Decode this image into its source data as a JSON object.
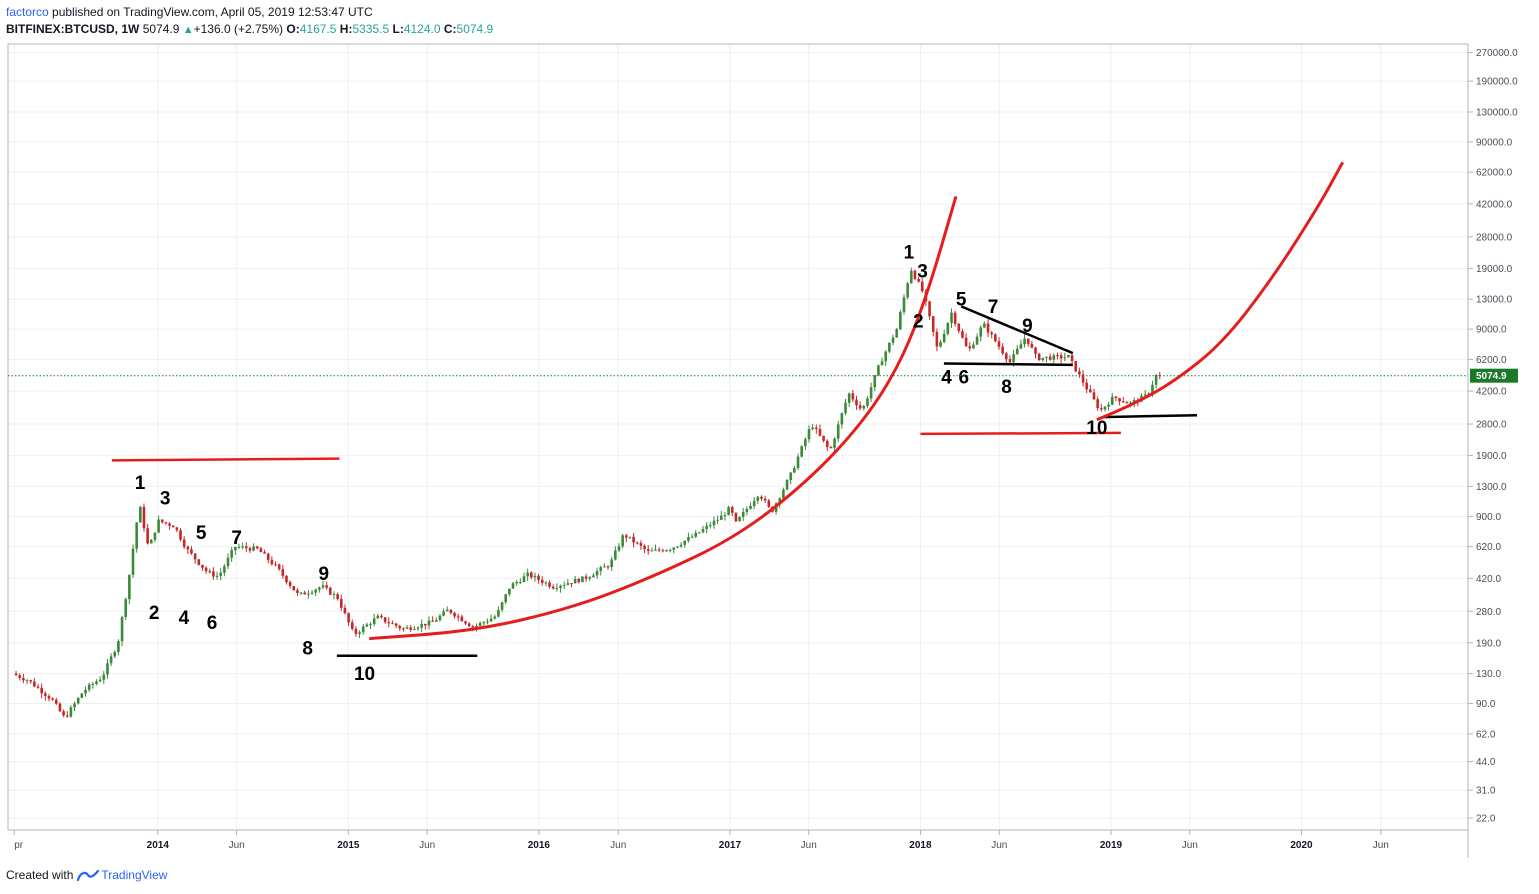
{
  "header": {
    "author": "factorco",
    "published": " published on TradingView.com, April 05, 2019 12:53:47 UTC",
    "symbol": "BITFINEX:BTCUSD, 1W",
    "last": "5074.9",
    "up_arrow": "▲",
    "change": "+136.0 (+2.75%)",
    "o_label": "O:",
    "o_value": "4167.5",
    "h_label": "H:",
    "h_value": "5335.5",
    "l_label": "L:",
    "l_value": "4124.0",
    "c_label": "C:",
    "c_value": "5074.9"
  },
  "footer": {
    "created_with": "Created with",
    "brand": "TradingView"
  },
  "colors": {
    "up": "#26a69a",
    "down": "#ef5350",
    "candle_body_up": "#3a8a3a",
    "candle_body_down": "#c62828",
    "curve": "#e61d1d",
    "line_black": "#000000",
    "last_price_bg": "#1b7a2a",
    "brand": "#2962ff"
  },
  "chart_data": {
    "type": "candlestick",
    "symbol": "BITFINEX:BTCUSD",
    "interval": "1W",
    "y_scale": "log",
    "ylim": [
      20,
      270000
    ],
    "y_ticks": [
      "270000.0",
      "190000.0",
      "130000.0",
      "90000.0",
      "62000.0",
      "42000.0",
      "28000.0",
      "19000.0",
      "13000.0",
      "9000.0",
      "6200.0",
      "4200.0",
      "2800.0",
      "1900.0",
      "1300.0",
      "900.0",
      "620.0",
      "420.0",
      "280.0",
      "190.0",
      "130.0",
      "90.0",
      "62.0",
      "44.0",
      "31.0",
      "22.0"
    ],
    "last_price": "5074.9",
    "x_ticks": [
      {
        "label": "pr",
        "date": "2013-04-01",
        "year": false
      },
      {
        "label": "2014",
        "date": "2014-01-01",
        "year": true
      },
      {
        "label": "Jun",
        "date": "2014-06-01",
        "year": false
      },
      {
        "label": "2015",
        "date": "2015-01-01",
        "year": true
      },
      {
        "label": "Jun",
        "date": "2015-06-01",
        "year": false
      },
      {
        "label": "2016",
        "date": "2016-01-01",
        "year": true
      },
      {
        "label": "Jun",
        "date": "2016-06-01",
        "year": false
      },
      {
        "label": "2017",
        "date": "2017-01-01",
        "year": true
      },
      {
        "label": "Jun",
        "date": "2017-06-01",
        "year": false
      },
      {
        "label": "2018",
        "date": "2018-01-01",
        "year": true
      },
      {
        "label": "Jun",
        "date": "2018-06-01",
        "year": false
      },
      {
        "label": "2019",
        "date": "2019-01-01",
        "year": true
      },
      {
        "label": "Jun",
        "date": "2019-06-01",
        "year": false
      },
      {
        "label": "2020",
        "date": "2020-01-01",
        "year": true
      },
      {
        "label": "Jun",
        "date": "2020-06-01",
        "year": false
      }
    ],
    "price_path": [
      {
        "date": "2013-04-01",
        "price": 130
      },
      {
        "date": "2013-05-01",
        "price": 120
      },
      {
        "date": "2013-06-15",
        "price": 95
      },
      {
        "date": "2013-07-10",
        "price": 75
      },
      {
        "date": "2013-08-15",
        "price": 105
      },
      {
        "date": "2013-09-20",
        "price": 125
      },
      {
        "date": "2013-10-20",
        "price": 190
      },
      {
        "date": "2013-11-10",
        "price": 420
      },
      {
        "date": "2013-11-30",
        "price": 1050
      },
      {
        "date": "2013-12-18",
        "price": 600
      },
      {
        "date": "2014-01-05",
        "price": 850
      },
      {
        "date": "2014-02-05",
        "price": 800
      },
      {
        "date": "2014-03-01",
        "price": 600
      },
      {
        "date": "2014-04-10",
        "price": 450
      },
      {
        "date": "2014-05-01",
        "price": 430
      },
      {
        "date": "2014-06-01",
        "price": 620
      },
      {
        "date": "2014-07-15",
        "price": 600
      },
      {
        "date": "2014-08-20",
        "price": 480
      },
      {
        "date": "2014-10-01",
        "price": 340
      },
      {
        "date": "2014-11-15",
        "price": 380
      },
      {
        "date": "2014-12-15",
        "price": 330
      },
      {
        "date": "2015-01-15",
        "price": 210
      },
      {
        "date": "2015-03-01",
        "price": 260
      },
      {
        "date": "2015-04-20",
        "price": 225
      },
      {
        "date": "2015-06-15",
        "price": 245
      },
      {
        "date": "2015-07-15",
        "price": 285
      },
      {
        "date": "2015-09-01",
        "price": 230
      },
      {
        "date": "2015-10-15",
        "price": 265
      },
      {
        "date": "2015-11-10",
        "price": 380
      },
      {
        "date": "2015-12-15",
        "price": 440
      },
      {
        "date": "2016-02-01",
        "price": 380
      },
      {
        "date": "2016-04-01",
        "price": 420
      },
      {
        "date": "2016-05-20",
        "price": 500
      },
      {
        "date": "2016-06-15",
        "price": 720
      },
      {
        "date": "2016-08-01",
        "price": 580
      },
      {
        "date": "2016-09-15",
        "price": 610
      },
      {
        "date": "2016-11-01",
        "price": 720
      },
      {
        "date": "2016-12-20",
        "price": 900
      },
      {
        "date": "2017-01-05",
        "price": 1000
      },
      {
        "date": "2017-01-15",
        "price": 820
      },
      {
        "date": "2017-03-01",
        "price": 1200
      },
      {
        "date": "2017-03-25",
        "price": 950
      },
      {
        "date": "2017-05-01",
        "price": 1500
      },
      {
        "date": "2017-06-10",
        "price": 2800
      },
      {
        "date": "2017-07-15",
        "price": 2000
      },
      {
        "date": "2017-08-20",
        "price": 4100
      },
      {
        "date": "2017-09-15",
        "price": 3300
      },
      {
        "date": "2017-10-20",
        "price": 6000
      },
      {
        "date": "2017-11-20",
        "price": 9000
      },
      {
        "date": "2017-12-17",
        "price": 19000
      },
      {
        "date": "2018-01-10",
        "price": 14000
      },
      {
        "date": "2018-02-06",
        "price": 7000
      },
      {
        "date": "2018-03-05",
        "price": 11000
      },
      {
        "date": "2018-04-06",
        "price": 6800
      },
      {
        "date": "2018-05-05",
        "price": 9600
      },
      {
        "date": "2018-06-25",
        "price": 6000
      },
      {
        "date": "2018-07-25",
        "price": 8200
      },
      {
        "date": "2018-08-15",
        "price": 6300
      },
      {
        "date": "2018-10-15",
        "price": 6400
      },
      {
        "date": "2018-11-20",
        "price": 4300
      },
      {
        "date": "2018-12-15",
        "price": 3300
      },
      {
        "date": "2019-01-10",
        "price": 3900
      },
      {
        "date": "2019-02-10",
        "price": 3600
      },
      {
        "date": "2019-03-15",
        "price": 4000
      },
      {
        "date": "2019-04-01",
        "price": 5074.9
      }
    ],
    "annotations": {
      "labels": [
        {
          "text": "1",
          "date": "2013-11-28",
          "price": 1260
        },
        {
          "text": "3",
          "date": "2014-01-15",
          "price": 1040
        },
        {
          "text": "2",
          "date": "2013-12-25",
          "price": 255
        },
        {
          "text": "5",
          "date": "2014-03-25",
          "price": 680
        },
        {
          "text": "4",
          "date": "2014-02-20",
          "price": 240
        },
        {
          "text": "7",
          "date": "2014-06-01",
          "price": 640
        },
        {
          "text": "6",
          "date": "2014-04-15",
          "price": 225
        },
        {
          "text": "9",
          "date": "2014-11-15",
          "price": 410
        },
        {
          "text": "8",
          "date": "2014-10-15",
          "price": 165
        },
        {
          "text": "10",
          "date": "2015-02-01",
          "price": 120
        },
        {
          "text": "1",
          "date": "2017-12-10",
          "price": 21500
        },
        {
          "text": "3",
          "date": "2018-01-05",
          "price": 17000
        },
        {
          "text": "2",
          "date": "2017-12-28",
          "price": 9200
        },
        {
          "text": "5",
          "date": "2018-03-20",
          "price": 12000
        },
        {
          "text": "7",
          "date": "2018-05-20",
          "price": 11000
        },
        {
          "text": "9",
          "date": "2018-07-25",
          "price": 8700
        },
        {
          "text": "4",
          "date": "2018-02-20",
          "price": 4600
        },
        {
          "text": "6",
          "date": "2018-03-25",
          "price": 4600
        },
        {
          "text": "8",
          "date": "2018-06-15",
          "price": 4100
        },
        {
          "text": "10",
          "date": "2018-12-05",
          "price": 2470
        }
      ],
      "lines": [
        {
          "color": "red",
          "points": [
            [
              "2013-10-05",
              1790
            ],
            [
              "2014-12-15",
              1830
            ]
          ]
        },
        {
          "color": "black",
          "points": [
            [
              "2014-12-10",
              162
            ],
            [
              "2015-09-05",
              162
            ]
          ]
        },
        {
          "color": "red",
          "points": [
            [
              "2018-01-01",
              2480
            ],
            [
              "2019-01-20",
              2510
            ]
          ]
        },
        {
          "color": "black",
          "points": [
            [
              "2018-02-15",
              5900
            ],
            [
              "2018-10-20",
              5800
            ]
          ]
        },
        {
          "color": "black",
          "points": [
            [
              "2018-03-20",
              11900
            ],
            [
              "2018-10-20",
              6700
            ]
          ]
        },
        {
          "color": "black",
          "points": [
            [
              "2018-12-15",
              3050
            ],
            [
              "2019-06-15",
              3120
            ]
          ]
        }
      ],
      "curves": [
        {
          "color": "red",
          "points": [
            [
              "2015-02-10",
              200
            ],
            [
              "2015-09-01",
              220
            ],
            [
              "2016-03-01",
              290
            ],
            [
              "2016-08-01",
              420
            ],
            [
              "2017-01-15",
              700
            ],
            [
              "2017-06-01",
              1400
            ],
            [
              "2017-09-15",
              2900
            ],
            [
              "2017-11-25",
              6000
            ],
            [
              "2018-01-15",
              14000
            ],
            [
              "2018-03-10",
              46000
            ]
          ]
        },
        {
          "color": "red",
          "points": [
            [
              "2018-12-05",
              2950
            ],
            [
              "2019-02-15",
              3600
            ],
            [
              "2019-05-01",
              4700
            ],
            [
              "2019-08-01",
              7500
            ],
            [
              "2019-11-01",
              16000
            ],
            [
              "2020-02-01",
              40000
            ],
            [
              "2020-03-20",
              70000
            ]
          ]
        }
      ]
    }
  }
}
